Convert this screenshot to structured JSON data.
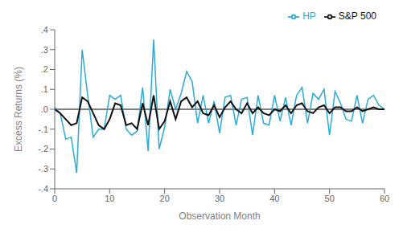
{
  "chart_data": {
    "type": "line",
    "xlabel": "Observation Month",
    "ylabel": "Excess Returns (%)",
    "x": [
      0,
      1,
      2,
      3,
      4,
      5,
      6,
      7,
      8,
      9,
      10,
      11,
      12,
      13,
      14,
      15,
      16,
      17,
      18,
      19,
      20,
      21,
      22,
      23,
      24,
      25,
      26,
      27,
      28,
      29,
      30,
      31,
      32,
      33,
      34,
      35,
      36,
      37,
      38,
      39,
      40,
      41,
      42,
      43,
      44,
      45,
      46,
      47,
      48,
      49,
      50,
      51,
      52,
      53,
      54,
      55,
      56,
      57,
      58,
      59,
      60
    ],
    "series": [
      {
        "name": "HP",
        "color": "#29ABD4",
        "values": [
          0.01,
          -0.02,
          -0.15,
          -0.14,
          -0.32,
          0.3,
          0.07,
          -0.14,
          -0.1,
          -0.1,
          0.07,
          0.05,
          0.07,
          -0.1,
          -0.13,
          -0.11,
          0.11,
          -0.21,
          0.35,
          -0.2,
          -0.09,
          0.1,
          0.0,
          0.08,
          0.19,
          0.14,
          -0.07,
          0.07,
          -0.07,
          0.04,
          -0.12,
          0.06,
          0.07,
          -0.08,
          0.05,
          0.06,
          -0.13,
          0.07,
          -0.07,
          -0.08,
          0.07,
          -0.06,
          0.06,
          -0.08,
          0.07,
          0.11,
          -0.07,
          0.08,
          0.05,
          0.1,
          -0.13,
          0.09,
          0.03,
          -0.05,
          -0.06,
          0.07,
          -0.07,
          0.05,
          0.07,
          0.02,
          0.0
        ]
      },
      {
        "name": "S&P 500",
        "color": "#111111",
        "values": [
          0.0,
          -0.02,
          -0.05,
          -0.08,
          -0.07,
          0.06,
          0.04,
          -0.02,
          -0.08,
          -0.1,
          -0.05,
          0.03,
          0.02,
          -0.08,
          -0.07,
          -0.1,
          0.03,
          -0.08,
          0.07,
          -0.1,
          -0.06,
          0.04,
          -0.05,
          0.04,
          0.06,
          0.01,
          0.04,
          -0.02,
          -0.03,
          0.02,
          -0.04,
          0.01,
          0.04,
          0.0,
          -0.02,
          0.03,
          -0.02,
          0.01,
          -0.02,
          -0.03,
          0.0,
          -0.01,
          0.02,
          -0.02,
          0.02,
          0.03,
          -0.01,
          -0.02,
          0.01,
          0.02,
          -0.02,
          0.01,
          0.01,
          -0.01,
          -0.01,
          0.01,
          -0.01,
          0.0,
          0.01,
          0.0,
          0.0
        ]
      }
    ],
    "xlim": [
      0,
      60
    ],
    "xticks": [
      0,
      10,
      20,
      30,
      40,
      50,
      60
    ],
    "ylim": [
      -0.4,
      0.4
    ],
    "yticks": [
      {
        "value": -0.4,
        "label": "-.4"
      },
      {
        "value": -0.3,
        "label": "-.3"
      },
      {
        "value": -0.2,
        "label": "-.2"
      },
      {
        "value": -0.1,
        "label": "-.1"
      },
      {
        "value": 0.0,
        "label": ".0"
      },
      {
        "value": 0.1,
        "label": ".1"
      },
      {
        "value": 0.2,
        "label": ".2"
      },
      {
        "value": 0.3,
        "label": ".3"
      },
      {
        "value": 0.4,
        "label": ".4"
      }
    ],
    "reference_lines": [
      0
    ],
    "legend": "upper right",
    "grid": false
  }
}
